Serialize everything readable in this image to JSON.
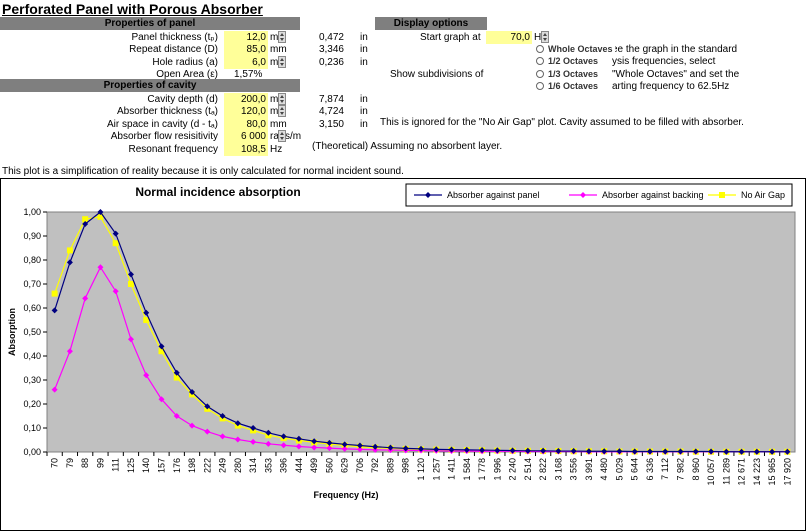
{
  "title": "Perforated Panel with Porous Absorber",
  "panel_header": "Properties of panel",
  "cavity_header": "Properties of cavity",
  "display_header": "Display options",
  "panel_rows": [
    {
      "label": "Panel thickness (tₚ)",
      "value": "12,0",
      "unit": "m",
      "conv": "0,472",
      "conv_unit": "in",
      "spinner": true
    },
    {
      "label": "Repeat distance (D)",
      "value": "85,0",
      "unit": "mm",
      "conv": "3,346",
      "conv_unit": "in",
      "spinner": false
    },
    {
      "label": "Hole radius (a)",
      "value": "6,0",
      "unit": "m",
      "conv": "0,236",
      "conv_unit": "in",
      "spinner": true
    },
    {
      "label": "Open Area (ε)",
      "value": "1,57%",
      "unit": "",
      "conv": "",
      "conv_unit": "",
      "spinner": false
    }
  ],
  "cavity_rows": [
    {
      "label": "Cavity depth (d)",
      "value": "200,0",
      "unit": "m",
      "conv": "7,874",
      "conv_unit": "in",
      "spinner": true
    },
    {
      "label": "Absorber thickness (tₐ)",
      "value": "120,0",
      "unit": "m",
      "conv": "4,724",
      "conv_unit": "in",
      "spinner": true
    },
    {
      "label": "Air space in cavity (d - tₐ)",
      "value": "80,0",
      "unit": "mm",
      "conv": "3,150",
      "conv_unit": "in",
      "spinner": false
    },
    {
      "label": "Absorber flow resisitivity",
      "value": "6 000",
      "unit": "ra",
      "unit2": "s/m",
      "conv": "",
      "conv_unit": "",
      "spinner": true
    },
    {
      "label": "Resonant frequency",
      "value": "108,5",
      "unit": "Hz",
      "conv": "",
      "conv_unit": "",
      "spinner": false
    }
  ],
  "air_gap_note": "This is ignored for the \"No Air Gap\" plot.  Cavity assumed to be filled with absorber.",
  "resonant_note": "(Theoretical) Assuming no absorbent layer.",
  "display": {
    "start_label": "Start graph at",
    "start_value": "70,0",
    "start_unit": "H",
    "subdiv_label": "Show subdivisions of",
    "options": [
      "Whole Octaves",
      "1/2 Octaves",
      "1/3 Octaves",
      "1/6 Octaves"
    ],
    "help_lines": [
      "ee the graph in the standard",
      "ysis frequencies, select",
      "\"Whole Octaves\" and set the",
      "arting frequency to 62.5Hz"
    ]
  },
  "simplification_note": "This plot is a simplification of reality because it is only calculated for normal incident sound.",
  "colors": {
    "plot_bg": "#c0c0c0",
    "panel_series": "#000080",
    "backing_series": "#ff00ff",
    "nogap_series": "#ffff00",
    "header_bg": "#7f7f7f",
    "input_bg": "#ffff99"
  },
  "chart_data": {
    "type": "line",
    "title": "Normal incidence absorption",
    "xlabel": "Frequency (Hz)",
    "ylabel": "Absorption",
    "ylim": [
      0,
      1
    ],
    "yticks": [
      "0,00",
      "0,10",
      "0,20",
      "0,30",
      "0,40",
      "0,50",
      "0,60",
      "0,70",
      "0,80",
      "0,90",
      "1,00"
    ],
    "legend_position": "top-right",
    "categories": [
      "70",
      "79",
      "88",
      "99",
      "111",
      "125",
      "140",
      "157",
      "176",
      "198",
      "222",
      "249",
      "280",
      "314",
      "353",
      "396",
      "444",
      "499",
      "560",
      "629",
      "706",
      "792",
      "889",
      "998",
      "1 120",
      "1 257",
      "1 411",
      "1 584",
      "1 778",
      "1 996",
      "2 240",
      "2 514",
      "2 822",
      "3 168",
      "3 556",
      "3 991",
      "4 480",
      "5 029",
      "5 644",
      "6 336",
      "7 112",
      "7 982",
      "8 960",
      "10 057",
      "11 289",
      "12 671",
      "14 223",
      "15 965",
      "17 920"
    ],
    "series": [
      {
        "name": "Absorber against panel",
        "marker": "diamond",
        "values": [
          0.59,
          0.79,
          0.95,
          1.0,
          0.91,
          0.74,
          0.58,
          0.44,
          0.33,
          0.25,
          0.19,
          0.15,
          0.12,
          0.1,
          0.08,
          0.065,
          0.055,
          0.045,
          0.038,
          0.032,
          0.027,
          0.022,
          0.018,
          0.015,
          0.013,
          0.011,
          0.01,
          0.009,
          0.008,
          0.007,
          0.006,
          0.005,
          0.005,
          0.004,
          0.004,
          0.003,
          0.003,
          0.003,
          0.002,
          0.002,
          0.002,
          0.002,
          0.002,
          0.002,
          0.001,
          0.001,
          0.001,
          0.001,
          0.001
        ]
      },
      {
        "name": "Absorber against backing",
        "marker": "diamond",
        "values": [
          0.26,
          0.42,
          0.64,
          0.77,
          0.67,
          0.47,
          0.32,
          0.22,
          0.15,
          0.11,
          0.085,
          0.065,
          0.052,
          0.042,
          0.034,
          0.028,
          0.023,
          0.019,
          0.016,
          0.013,
          0.011,
          0.009,
          0.008,
          0.007,
          0.006,
          0.005,
          0.004,
          0.004,
          0.003,
          0.003,
          0.003,
          0.002,
          0.002,
          0.002,
          0.002,
          0.001,
          0.001,
          0.001,
          0.001,
          0.001,
          0.001,
          0.001,
          0.001,
          0.001,
          0.001,
          0.001,
          0.001,
          0.001,
          0.001
        ]
      },
      {
        "name": "No Air Gap",
        "marker": "square",
        "values": [
          0.66,
          0.84,
          0.97,
          0.98,
          0.87,
          0.7,
          0.55,
          0.42,
          0.31,
          0.24,
          0.18,
          0.14,
          0.11,
          0.09,
          0.07,
          0.058,
          0.048,
          0.04,
          0.033,
          0.027,
          0.022,
          0.018,
          0.015,
          0.013,
          0.011,
          0.01,
          0.009,
          0.008,
          0.007,
          0.006,
          0.005,
          0.005,
          0.004,
          0.004,
          0.003,
          0.003,
          0.003,
          0.002,
          0.002,
          0.002,
          0.002,
          0.002,
          0.001,
          0.001,
          0.001,
          0.001,
          0.001,
          0.001,
          0.001
        ]
      }
    ]
  }
}
